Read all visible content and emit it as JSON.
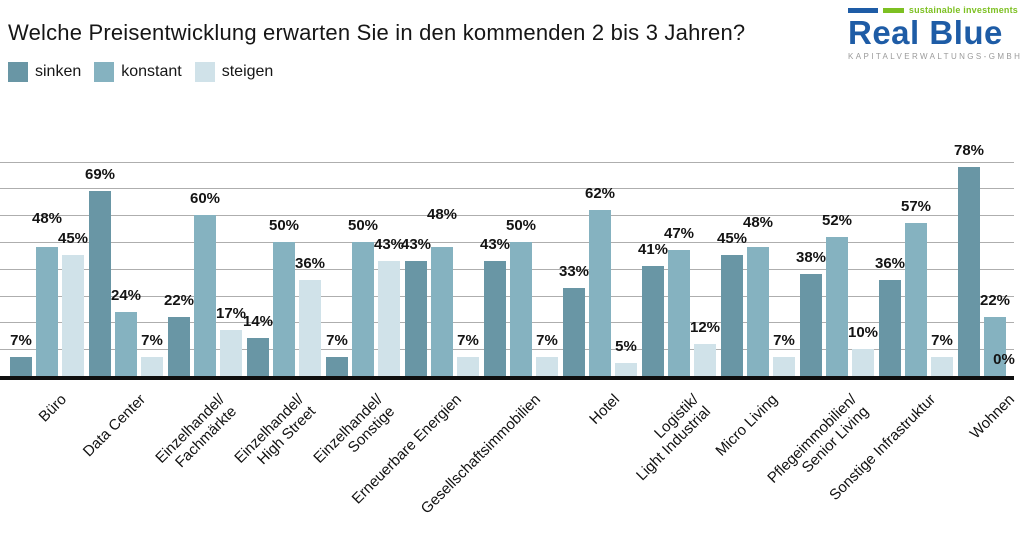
{
  "title": "Welche Preisentwicklung erwarten Sie in den kommenden 2 bis 3 Jahren?",
  "legend": [
    {
      "label": "sinken",
      "color": "#6996a5"
    },
    {
      "label": "konstant",
      "color": "#85b2c0"
    },
    {
      "label": "steigen",
      "color": "#d0e2e9"
    }
  ],
  "logo": {
    "tagline": "sustainable investments",
    "name": "Real Blue",
    "subtitle": "KAPITALVERWALTUNGS-GMBH",
    "blue": "#1e5ca6",
    "green": "#7dc022",
    "gray": "#9a9a9a"
  },
  "chart_data": {
    "type": "bar",
    "title": "Welche Preisentwicklung erwarten Sie in den kommenden 2 bis 3 Jahren?",
    "categories": [
      "Büro",
      "Data Center",
      "Einzelhandel/\nFachmärkte",
      "Einzelhandel/\nHigh Street",
      "Einzelhandel/\nSonstige",
      "Erneuerbare Energien",
      "Gesellschaftsimmobilien",
      "Hotel",
      "Logistik/\nLight Industrial",
      "Micro Living",
      "Pflegeimmobilien/\nSenior Living",
      "Sonstige Infrastruktur",
      "Wohnen"
    ],
    "series": [
      {
        "name": "sinken",
        "color": "#6996a5",
        "values": [
          7,
          69,
          22,
          14,
          7,
          43,
          43,
          33,
          41,
          45,
          38,
          36,
          78
        ]
      },
      {
        "name": "konstant",
        "color": "#85b2c0",
        "values": [
          48,
          24,
          60,
          50,
          50,
          48,
          50,
          62,
          47,
          48,
          52,
          57,
          22
        ]
      },
      {
        "name": "steigen",
        "color": "#d0e2e9",
        "values": [
          45,
          7,
          17,
          36,
          43,
          7,
          7,
          5,
          12,
          7,
          10,
          7,
          0
        ]
      }
    ],
    "value_label_format": "{value}%",
    "ylim": [
      0,
      80
    ],
    "grid": {
      "axis": "y",
      "step_percent": 10,
      "max_percent": 80,
      "lines_visible": true
    },
    "legend_position": "top-left",
    "x_label_rotation_deg": -45,
    "y_axis_labels_visible": false
  }
}
